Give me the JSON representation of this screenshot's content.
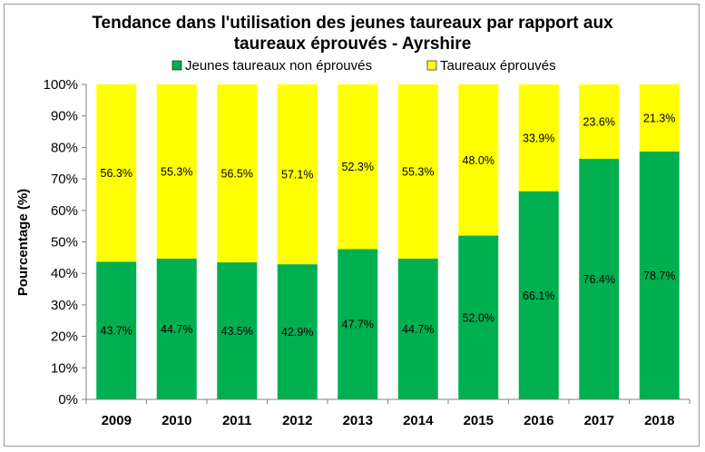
{
  "chart_data": {
    "type": "bar",
    "stacked": true,
    "title_line1": "Tendance dans l'utilisation des jeunes taureaux par rapport aux",
    "title_line2": "taureaux éprouvés - Ayrshire",
    "xlabel": "",
    "ylabel": "Pourcentage (%)",
    "ylim": [
      0,
      100
    ],
    "yticks": [
      "0%",
      "10%",
      "20%",
      "30%",
      "40%",
      "50%",
      "60%",
      "70%",
      "80%",
      "90%",
      "100%"
    ],
    "grid": false,
    "legend_position": "top",
    "categories": [
      "2009",
      "2010",
      "2011",
      "2012",
      "2013",
      "2014",
      "2015",
      "2016",
      "2017",
      "2018"
    ],
    "series": [
      {
        "name": "Jeunes taureaux non éprouvés",
        "color": "#00b050",
        "values": [
          43.7,
          44.7,
          43.5,
          42.9,
          47.7,
          44.7,
          52.0,
          66.1,
          76.4,
          78.7
        ],
        "labels": [
          "43.7%",
          "44.7%",
          "43.5%",
          "42.9%",
          "47.7%",
          "44.7%",
          "52.0%",
          "66.1%",
          "76.4%",
          "78.7%"
        ]
      },
      {
        "name": "Taureaux éprouvés",
        "color": "#ffff00",
        "values": [
          56.3,
          55.3,
          56.5,
          57.1,
          52.3,
          55.3,
          48.0,
          33.9,
          23.6,
          21.3
        ],
        "labels": [
          "56.3%",
          "55.3%",
          "56.5%",
          "57.1%",
          "52.3%",
          "55.3%",
          "48.0%",
          "33.9%",
          "23.6%",
          "21.3%"
        ]
      }
    ]
  }
}
